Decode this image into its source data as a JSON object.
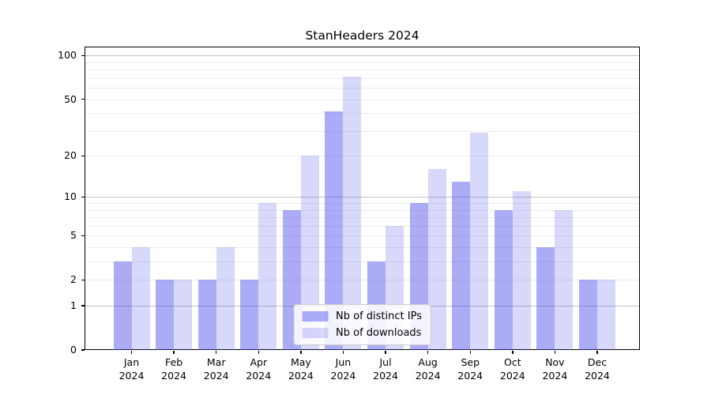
{
  "title": "StanHeaders 2024",
  "colors": {
    "ips": "rgba(70,70,235,0.45)",
    "downloads": "rgba(70,70,235,0.21)",
    "grid_minor": "#ededed",
    "grid_major": "#c2c2c2",
    "axis": "#000000"
  },
  "legend": {
    "items": [
      {
        "label": "Nb of distinct IPs",
        "series": "ips"
      },
      {
        "label": "Nb of downloads",
        "series": "downloads"
      }
    ]
  },
  "chart_data": {
    "type": "bar",
    "title": "StanHeaders 2024",
    "categories": [
      "Jan",
      "Feb",
      "Mar",
      "Apr",
      "May",
      "Jun",
      "Jul",
      "Aug",
      "Sep",
      "Oct",
      "Nov",
      "Dec"
    ],
    "year": "2024",
    "series": [
      {
        "name": "Nb of distinct IPs",
        "values": [
          3,
          2,
          2,
          2,
          8,
          41,
          3,
          9,
          13,
          8,
          4,
          2
        ]
      },
      {
        "name": "Nb of downloads",
        "values": [
          4,
          2,
          4,
          9,
          20,
          72,
          6,
          16,
          29,
          11,
          8,
          2
        ]
      }
    ],
    "xlabel": "",
    "ylabel": "",
    "yscale": "log1p",
    "ylim": [
      0,
      114
    ],
    "yticks": [
      100,
      50,
      20,
      10,
      5,
      2,
      1,
      0
    ],
    "gridlines_minor": [
      2,
      3,
      4,
      5,
      6,
      7,
      8,
      9,
      20,
      30,
      40,
      50,
      60,
      70,
      80,
      90
    ],
    "gridlines_major": [
      1,
      10,
      100
    ],
    "grid": "on",
    "legend_position": "bottom-center"
  }
}
